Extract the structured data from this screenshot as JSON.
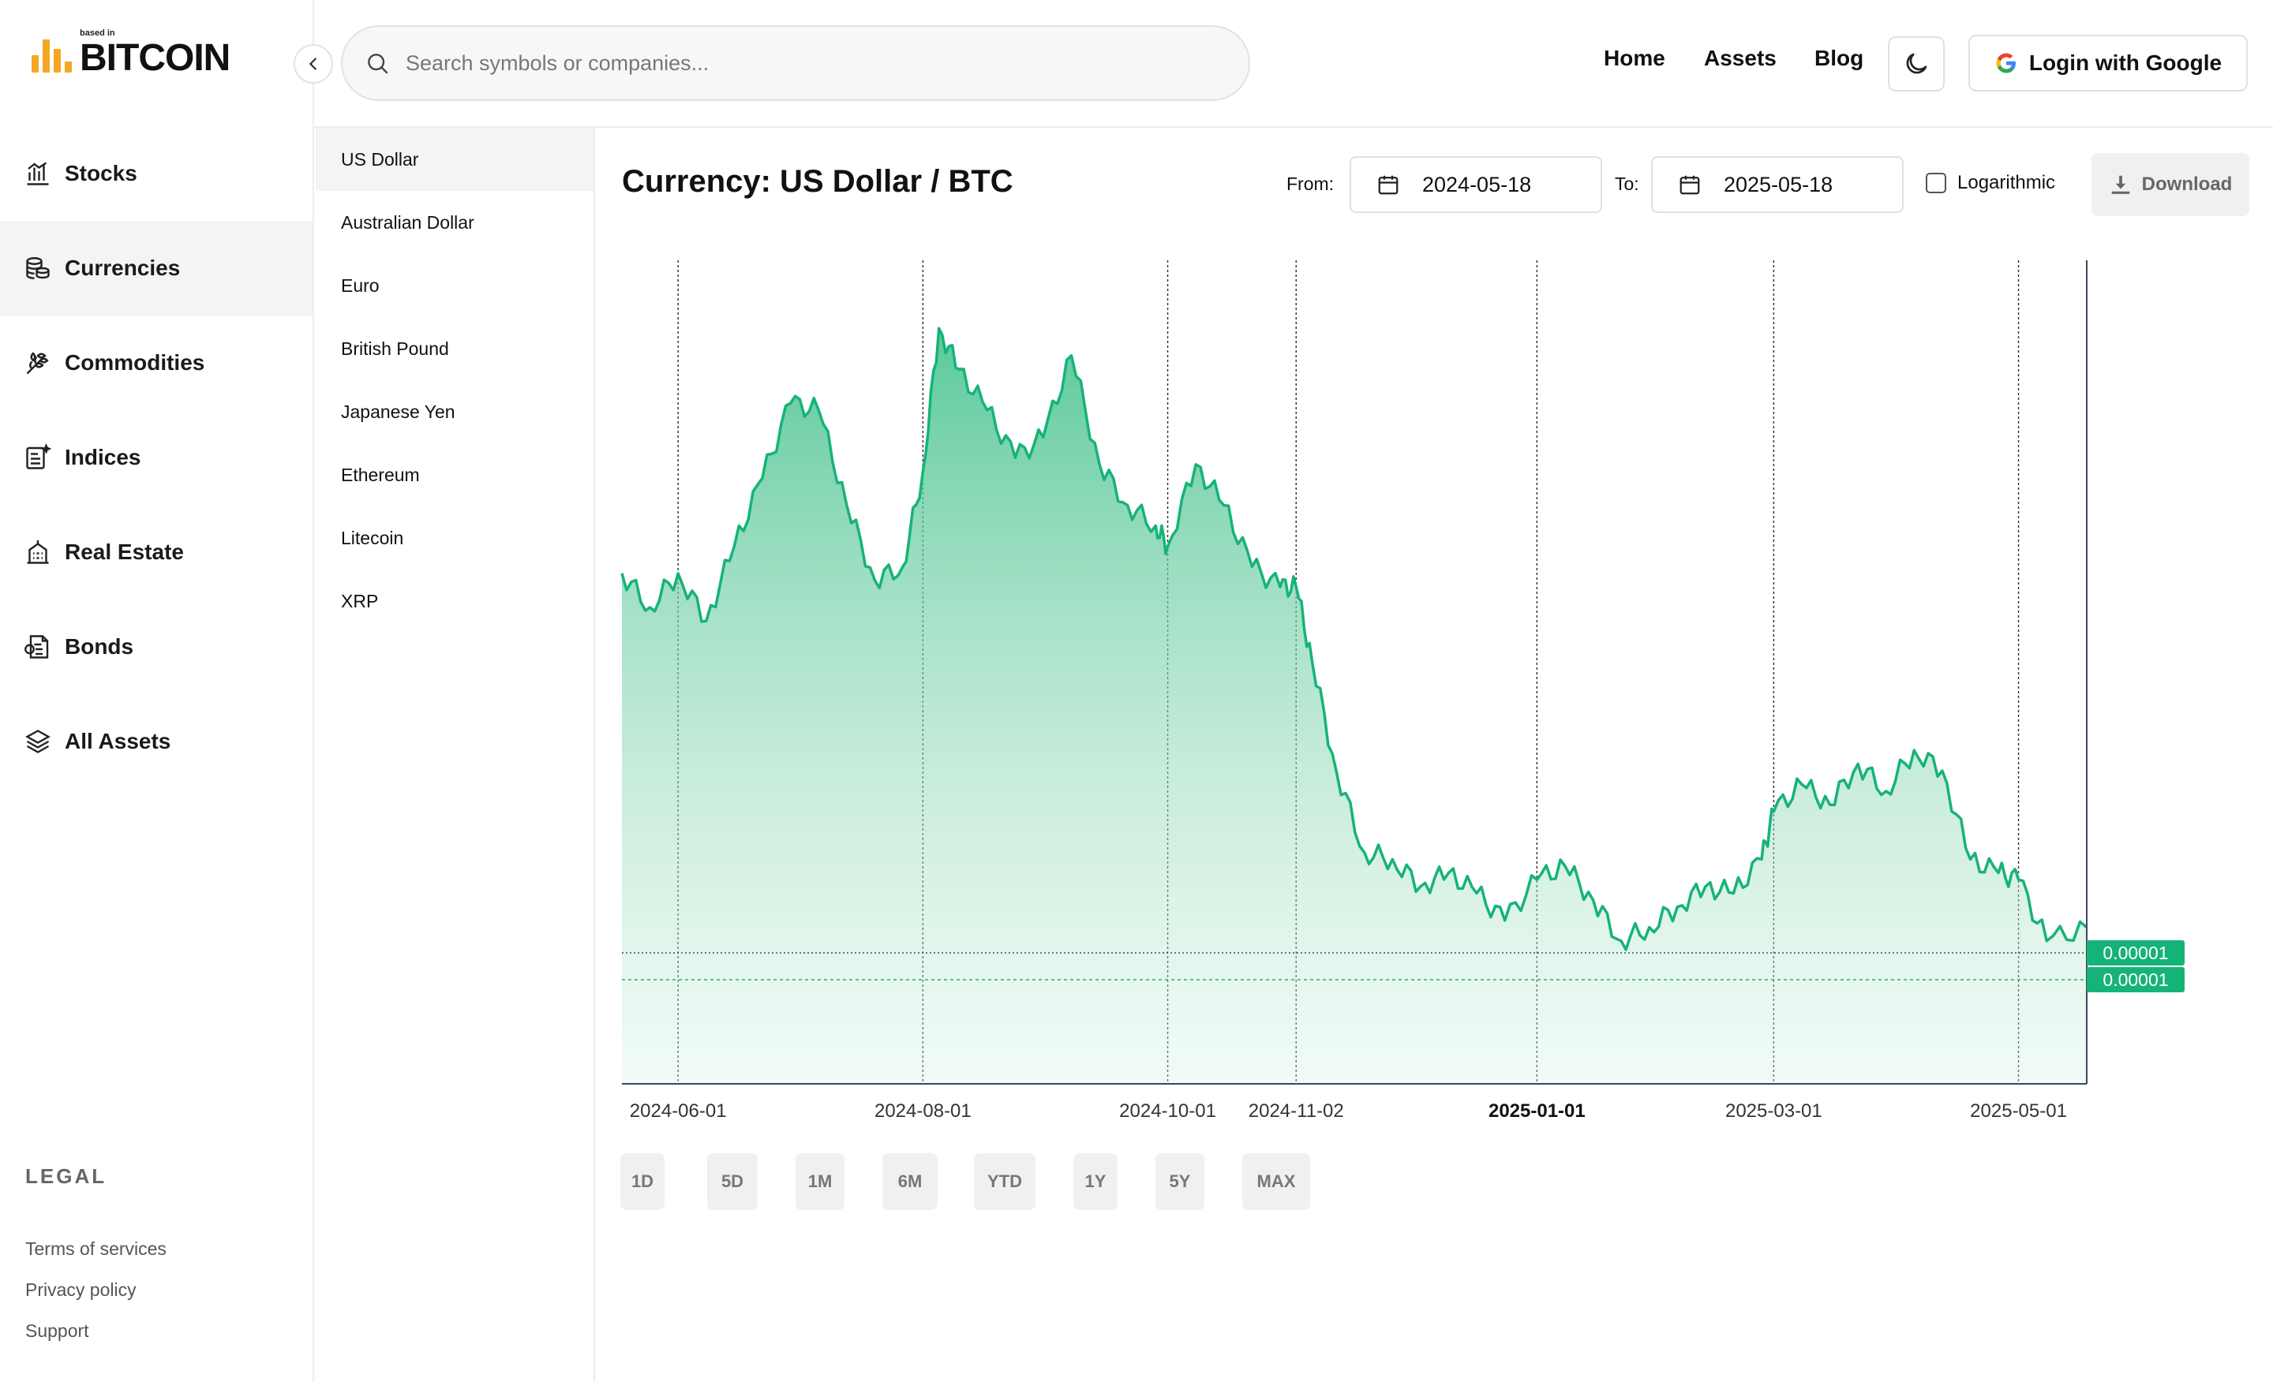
{
  "logo": {
    "small": "based in",
    "name": "BITCOIN"
  },
  "nav": {
    "items": [
      {
        "label": "Stocks",
        "icon": "chart-bars-icon",
        "active": false
      },
      {
        "label": "Currencies",
        "icon": "coins-icon",
        "active": true
      },
      {
        "label": "Commodities",
        "icon": "wheat-icon",
        "active": false
      },
      {
        "label": "Indices",
        "icon": "index-sheet-icon",
        "active": false
      },
      {
        "label": "Real Estate",
        "icon": "building-icon",
        "active": false
      },
      {
        "label": "Bonds",
        "icon": "bond-certificate-icon",
        "active": false
      },
      {
        "label": "All Assets",
        "icon": "layers-icon",
        "active": false
      }
    ]
  },
  "legal": {
    "title": "LEGAL",
    "links": [
      "Terms of services",
      "Privacy policy",
      "Support"
    ]
  },
  "search": {
    "placeholder": "Search symbols or companies..."
  },
  "header": {
    "links": [
      "Home",
      "Assets",
      "Blog"
    ],
    "login_label": "Login with Google"
  },
  "currencies": [
    "US Dollar",
    "Australian Dollar",
    "Euro",
    "British Pound",
    "Japanese Yen",
    "Ethereum",
    "Litecoin",
    "XRP"
  ],
  "toolbar": {
    "title": "Currency: US Dollar / BTC",
    "from_label": "From:",
    "from_value": "2024-05-18",
    "to_label": "To:",
    "to_value": "2025-05-18",
    "log_label": "Logarithmic",
    "log_checked": false,
    "download_label": "Download"
  },
  "periods": [
    "1D",
    "5D",
    "1M",
    "6M",
    "YTD",
    "1Y",
    "5Y",
    "MAX"
  ],
  "colors": {
    "accent": "#16b378",
    "logo": "#f5a623"
  },
  "chart_data": {
    "type": "area",
    "title": "Currency: US Dollar / BTC",
    "x_range": [
      "2024-05-18",
      "2025-05-18"
    ],
    "tick_labels": [
      "2024-06-01",
      "2024-08-01",
      "2024-10-01",
      "2024-11-02",
      "2025-01-01",
      "2025-03-01",
      "2025-05-01"
    ],
    "bold_tick": "2025-01-01",
    "current_value_labels": [
      "0.00001",
      "0.00001"
    ],
    "grid": true,
    "series": [
      {
        "x": [
          "2024-05-18",
          "2024-05-25",
          "2024-06-01",
          "2024-06-08",
          "2024-06-15",
          "2024-06-22",
          "2024-06-29",
          "2024-07-06",
          "2024-07-13",
          "2024-07-20",
          "2024-07-27",
          "2024-08-01",
          "2024-08-05",
          "2024-08-10",
          "2024-08-17",
          "2024-08-24",
          "2024-08-31",
          "2024-09-07",
          "2024-09-14",
          "2024-09-21",
          "2024-09-28",
          "2024-10-01",
          "2024-10-08",
          "2024-10-15",
          "2024-10-22",
          "2024-10-29",
          "2024-11-02",
          "2024-11-06",
          "2024-11-12",
          "2024-11-19",
          "2024-11-26",
          "2024-12-03",
          "2024-12-10",
          "2024-12-17",
          "2024-12-24",
          "2025-01-01",
          "2025-01-08",
          "2025-01-15",
          "2025-01-22",
          "2025-01-29",
          "2025-02-05",
          "2025-02-12",
          "2025-02-19",
          "2025-02-26",
          "2025-03-01",
          "2025-03-08",
          "2025-03-15",
          "2025-03-22",
          "2025-03-29",
          "2025-04-05",
          "2025-04-12",
          "2025-04-19",
          "2025-04-26",
          "2025-05-01",
          "2025-05-08",
          "2025-05-18"
        ],
        "values": [
          1.48e-05,
          1.43e-05,
          1.48e-05,
          1.41e-05,
          1.52e-05,
          1.62e-05,
          1.73e-05,
          1.72e-05,
          1.58e-05,
          1.47e-05,
          1.49e-05,
          1.63e-05,
          1.84e-05,
          1.78e-05,
          1.72e-05,
          1.65e-05,
          1.68e-05,
          1.8e-05,
          1.64e-05,
          1.58e-05,
          1.55e-05,
          1.52e-05,
          1.64e-05,
          1.58e-05,
          1.49e-05,
          1.46e-05,
          1.46e-05,
          1.35e-05,
          1.19e-05,
          1.07e-05,
          1.06e-05,
          1.02e-05,
          1.04e-05,
          1.01e-05,
          9.7e-06,
          1.03e-05,
          1.05e-05,
          1e-05,
          9.4e-06,
          9.6e-06,
          9.9e-06,
          1.02e-05,
          1.01e-05,
          1.06e-05,
          1.13e-05,
          1.17e-05,
          1.14e-05,
          1.2e-05,
          1.16e-05,
          1.22e-05,
          1.19e-05,
          1.06e-05,
          1.04e-05,
          1.03e-05,
          9.4e-06,
          9.6e-06
        ]
      }
    ]
  }
}
